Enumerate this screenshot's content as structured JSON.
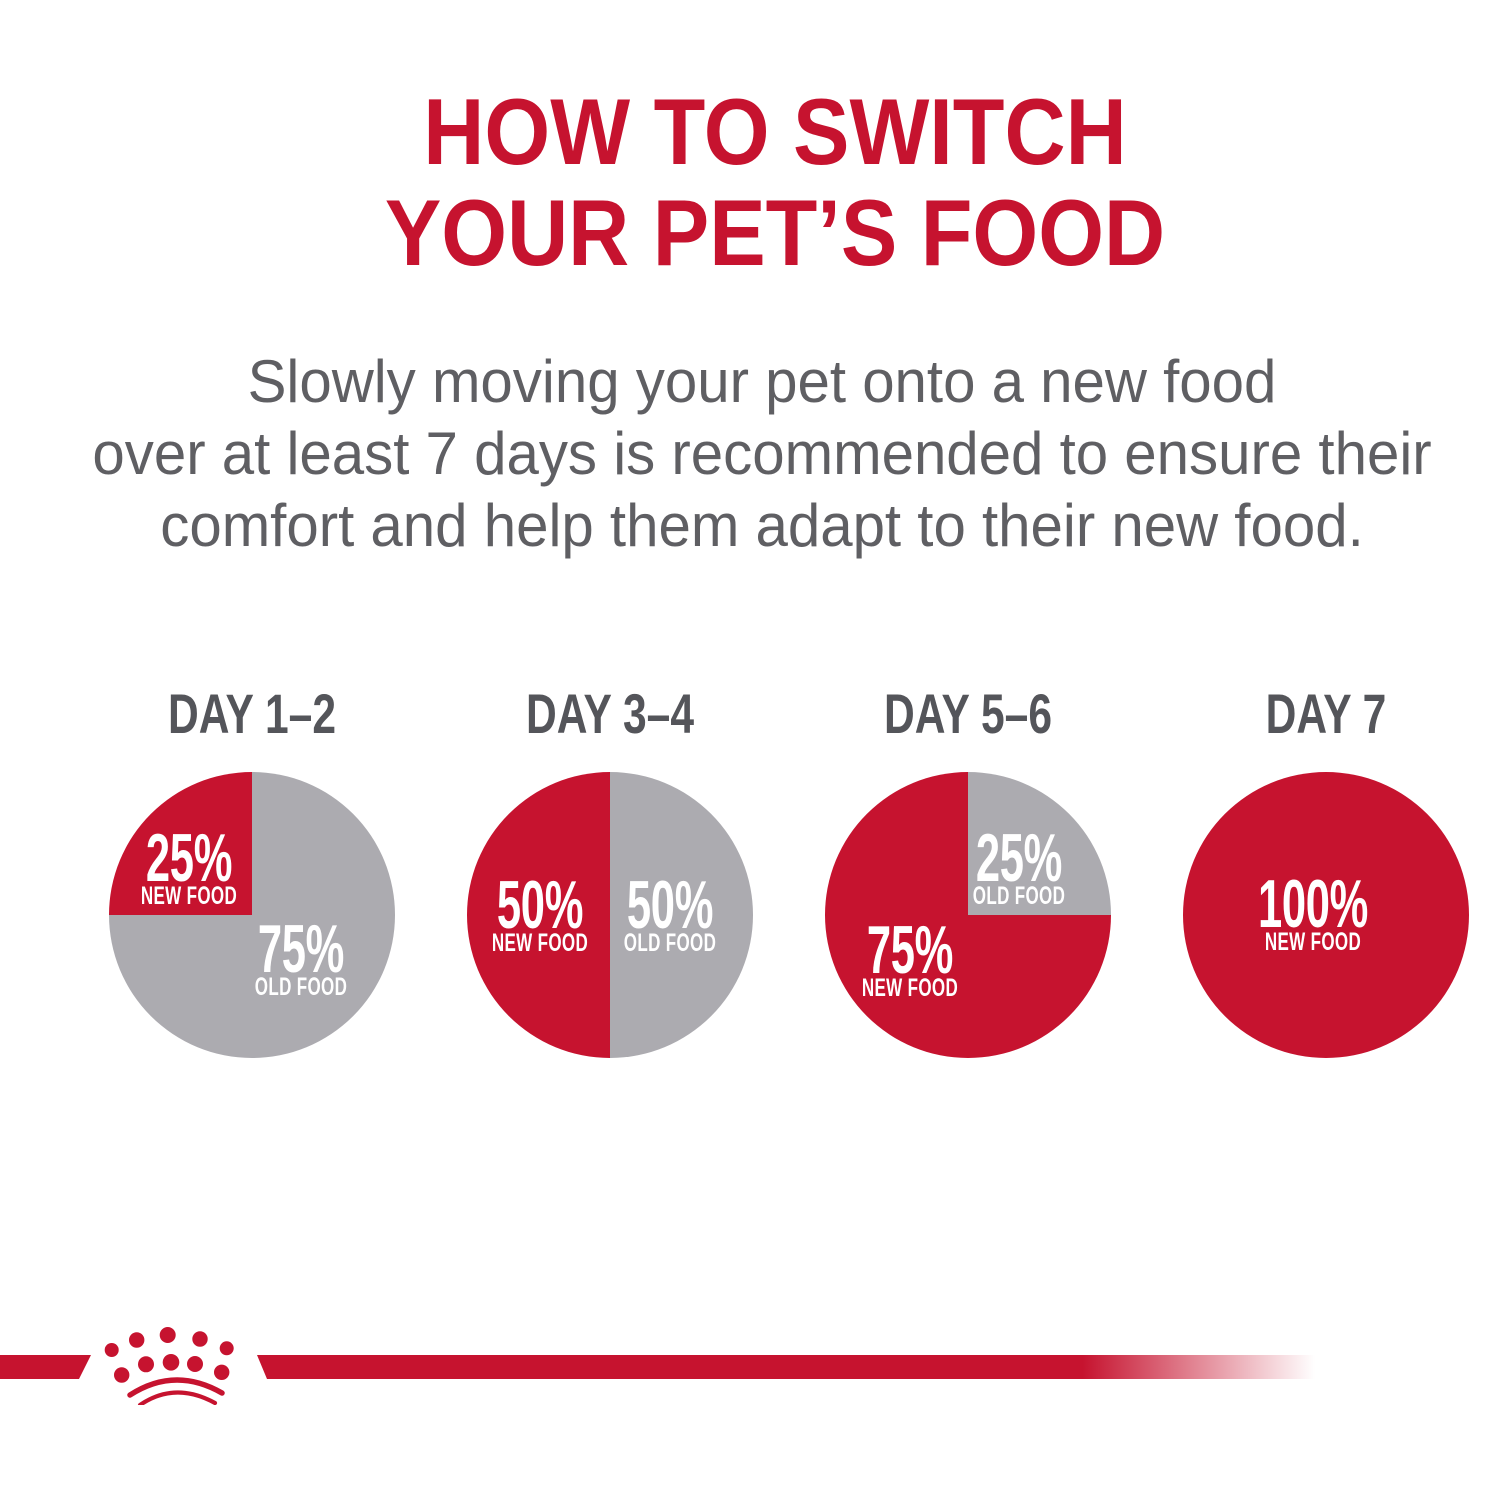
{
  "colors": {
    "red": "#C6132F",
    "gray": "#ACABB0",
    "daygray": "#54555A",
    "subgray": "#5F5F63",
    "label_text": "#FFFFFF",
    "background": "#FFFFFF"
  },
  "title": {
    "line1": "HOW TO SWITCH",
    "line2": "YOUR PET’S FOOD"
  },
  "subtitle": {
    "lines": [
      "Slowly moving your pet onto a new food",
      "over at least 7 days is recommended to ensure their",
      "comfort and help them adapt to their new food."
    ]
  },
  "chart_data": [
    {
      "type": "pie",
      "title": "DAY 1–2",
      "slices": [
        {
          "label": "OLD FOOD",
          "value": 75,
          "color_key": "gray"
        },
        {
          "label": "NEW FOOD",
          "value": 25,
          "color_key": "red"
        }
      ],
      "labels": [
        {
          "value": "25%",
          "name": "NEW FOOD",
          "x": 28,
          "y": 34.3
        },
        {
          "value": "75%",
          "name": "OLD FOOD",
          "x": 67,
          "y": 66
        }
      ]
    },
    {
      "type": "pie",
      "title": "DAY 3–4",
      "slices": [
        {
          "label": "OLD FOOD",
          "value": 50,
          "color_key": "gray"
        },
        {
          "label": "NEW FOOD",
          "value": 50,
          "color_key": "red"
        }
      ],
      "labels": [
        {
          "value": "50%",
          "name": "NEW FOOD",
          "x": 25.5,
          "y": 50.7
        },
        {
          "value": "50%",
          "name": "OLD FOOD",
          "x": 71,
          "y": 50.7
        }
      ]
    },
    {
      "type": "pie",
      "title": "DAY 5–6",
      "slices": [
        {
          "label": "OLD FOOD",
          "value": 25,
          "color_key": "gray"
        },
        {
          "label": "NEW FOOD",
          "value": 75,
          "color_key": "red"
        }
      ],
      "labels": [
        {
          "value": "25%",
          "name": "OLD FOOD",
          "x": 68,
          "y": 34.3
        },
        {
          "value": "75%",
          "name": "NEW FOOD",
          "x": 29.7,
          "y": 66.4
        }
      ]
    },
    {
      "type": "pie",
      "title": "DAY 7",
      "slices": [
        {
          "label": "NEW FOOD",
          "value": 100,
          "color_key": "red"
        }
      ],
      "labels": [
        {
          "value": "100%",
          "name": "NEW FOOD",
          "x": 45.5,
          "y": 50.3
        }
      ]
    }
  ],
  "footer": {
    "logo": "royal-canin-crown-logo"
  }
}
